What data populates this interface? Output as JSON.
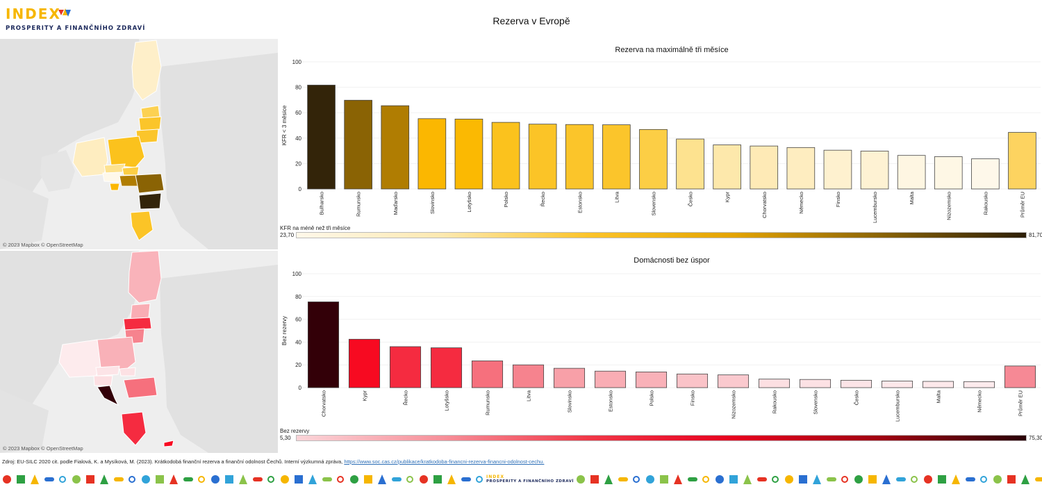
{
  "header": {
    "logo_word": "INDEX",
    "logo_subtitle": "PROSPERITY A FINANČNÍHO ZDRAVÍ",
    "title": "Rezerva v Evropě"
  },
  "map_credit": "© 2023 Mapbox © OpenStreetMap",
  "chart_data": [
    {
      "type": "bar",
      "title": "Rezerva na maximálně tři měsíce",
      "xlabel": "",
      "ylabel": "KFR < 3 měsíce",
      "ylim": [
        0,
        100
      ],
      "yticks": [
        0,
        20,
        40,
        60,
        80,
        100
      ],
      "grid": true,
      "categories": [
        "Bulharsko",
        "Rumunsko",
        "Maďarsko",
        "Slovinsko",
        "Lotyšsko",
        "Polsko",
        "Řecko",
        "Estonsko",
        "Litva",
        "Slovensko",
        "Česko",
        "Kypr",
        "Chorvatsko",
        "Německo",
        "Finsko",
        "Lucembursko",
        "Malta",
        "Nizozemsko",
        "Rakousko",
        "Průměr EU"
      ],
      "values": [
        81.7,
        69.8,
        65.5,
        55.3,
        55.0,
        52.4,
        51.0,
        50.7,
        50.5,
        46.8,
        39.3,
        34.7,
        33.8,
        32.6,
        30.5,
        29.8,
        26.4,
        25.4,
        23.7,
        44.5
      ],
      "colors": [
        "#332409",
        "#8a6304",
        "#b07d02",
        "#fbb701",
        "#fbb902",
        "#fbc21d",
        "#fbc427",
        "#fbc52a",
        "#fbc52b",
        "#fcce45",
        "#fde28f",
        "#fde8ab",
        "#feeab6",
        "#feedc0",
        "#fef1cf",
        "#fef2d3",
        "#fef6e2",
        "#fef7e5",
        "#fef8ea",
        "#fdd360"
      ],
      "legend": {
        "title": "KFR na méně než tři měsíce",
        "min_label": "23,70",
        "max_label": "81,70",
        "gradient": [
          "#fff8ea",
          "#fde9b0",
          "#fcc42a",
          "#e3a400",
          "#8b6404",
          "#2d1f07"
        ]
      }
    },
    {
      "type": "bar",
      "title": "Domácnosti bez úspor",
      "xlabel": "",
      "ylabel": "Bez rezervy",
      "ylim": [
        0,
        100
      ],
      "yticks": [
        0,
        20,
        40,
        60,
        80,
        100
      ],
      "grid": true,
      "categories": [
        "Chorvatsko",
        "Kypr",
        "Řecko",
        "Lotyšsko",
        "Rumunsko",
        "Litva",
        "Slovinsko",
        "Estonsko",
        "Polsko",
        "Finsko",
        "Nizozemsko",
        "Rakousko",
        "Slovensko",
        "Česko",
        "Lucembursko",
        "Malta",
        "Německo",
        "Průměr EU"
      ],
      "values": [
        75.3,
        42.5,
        36.0,
        35.0,
        23.5,
        20.0,
        17.0,
        14.5,
        13.8,
        12.0,
        11.2,
        7.5,
        7.2,
        6.5,
        5.8,
        5.5,
        5.3,
        19.0
      ],
      "colors": [
        "#330008",
        "#f70a21",
        "#f52b40",
        "#f52b40",
        "#f6707d",
        "#f6838e",
        "#f8a0a8",
        "#f9adb4",
        "#f9b1b8",
        "#fac3c8",
        "#fac9ce",
        "#fcdfe2",
        "#fce1e4",
        "#fce4e7",
        "#fde8ea",
        "#fde9eb",
        "#fdebed",
        "#f68995"
      ],
      "legend": {
        "title": "Bez rezervy",
        "min_label": "5,30",
        "max_label": "75,30",
        "gradient": [
          "#fbd5d9",
          "#f6909a",
          "#f03848",
          "#e6001f",
          "#a00012",
          "#2a0006"
        ]
      }
    }
  ],
  "footer": {
    "source_text": "Zdroj: EU-SILC 2020 cit. podle Fialová, K. a Mysíková, M. (2023). Krátkodobá finanční rezerva a finanční odolnost Čechů. Interní výzkumná zpráva, ",
    "source_link": "https://www.soc.cas.cz/publikace/kratkodoba-financni-rezerva-financni-odolnost-cechu."
  },
  "colors": {
    "brand_yellow": "#f6b600",
    "brand_navy": "#1d2a5c",
    "link_blue": "#2d6fb7",
    "map_land": "#e1e1e1",
    "map_sea": "#eeeeee"
  }
}
